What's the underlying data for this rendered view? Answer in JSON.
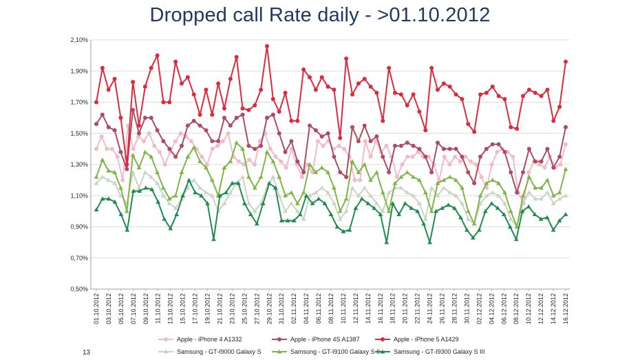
{
  "title": "Dropped call Rate daily - >01.10.2012",
  "page_number": "13",
  "chart_data": {
    "type": "line",
    "title": "Dropped call Rate daily - >01.10.2012",
    "xlabel": "",
    "ylabel": "",
    "ylim": [
      0.5,
      2.1
    ],
    "y_ticks": [
      "0,50%",
      "0,70%",
      "0,90%",
      "1,10%",
      "1,30%",
      "1,50%",
      "1,70%",
      "1,90%",
      "2,10%"
    ],
    "x_tick_labels": [
      "01.10.2012",
      "03.10.2012",
      "05.10.2012",
      "07.10.2012",
      "09.10.2012",
      "11.10.2012",
      "13.10.2012",
      "15.10.2012",
      "17.10.2012",
      "19.10.2012",
      "21.10.2012",
      "23.10.2012",
      "25.10.2012",
      "27.10.2012",
      "29.10.2012",
      "31.10.2012",
      "02.11.2012",
      "04.11.2012",
      "06.11.2012",
      "08.11.2012",
      "10.11.2012",
      "12.11.2012",
      "14.11.2012",
      "16.11.2012",
      "18.11.2012",
      "20.11.2012",
      "22.11.2012",
      "24.11.2012",
      "26.11.2012",
      "28.11.2012",
      "30.11.2012",
      "02.12.2012",
      "04.12.2012",
      "06.12.2012",
      "08.12.2012",
      "10.12.2012",
      "12.12.2012",
      "14.12.2012",
      "16.12.2012"
    ],
    "grid": true,
    "legend_position": "bottom",
    "series": [
      {
        "name": "Apple - iPhone 4 A1332",
        "color": "#f0bcc8",
        "marker": "circle",
        "values": [
          1.4,
          1.48,
          1.4,
          1.4,
          1.35,
          1.2,
          1.55,
          1.4,
          1.48,
          1.45,
          1.5,
          1.42,
          1.38,
          1.3,
          1.38,
          1.45,
          1.5,
          1.48,
          1.45,
          1.4,
          1.35,
          1.3,
          1.4,
          1.42,
          1.45,
          1.5,
          1.35,
          1.32,
          1.3,
          1.33,
          1.3,
          1.45,
          1.5,
          1.4,
          1.35,
          1.32,
          1.28,
          1.4,
          1.3,
          1.22,
          1.3,
          1.25,
          1.45,
          1.42,
          1.45,
          1.4,
          1.42,
          1.4,
          1.35,
          1.2,
          1.2,
          1.45,
          1.35,
          1.45,
          1.38,
          1.42,
          1.35,
          1.22,
          1.3,
          1.35,
          1.35,
          1.38,
          1.35,
          1.35,
          1.3,
          1.2,
          1.35,
          1.3,
          1.35,
          1.32,
          1.35,
          1.32,
          1.3,
          1.22,
          1.15,
          1.3,
          1.38,
          1.4,
          1.38,
          1.35,
          1.12,
          1.05,
          1.25,
          1.32,
          1.3,
          1.28,
          1.35,
          1.28,
          1.3,
          1.43
        ]
      },
      {
        "name": "Apple - iPhone 4S A1387",
        "color": "#b04a62",
        "marker": "circle",
        "values": [
          1.56,
          1.62,
          1.54,
          1.52,
          1.38,
          1.27,
          1.65,
          1.5,
          1.6,
          1.6,
          1.52,
          1.45,
          1.4,
          1.35,
          1.42,
          1.55,
          1.58,
          1.55,
          1.52,
          1.45,
          1.45,
          1.6,
          1.55,
          1.6,
          1.62,
          1.42,
          1.4,
          1.42,
          1.6,
          1.62,
          1.5,
          1.38,
          1.45,
          1.32,
          1.25,
          1.55,
          1.52,
          1.48,
          1.5,
          1.35,
          1.25,
          1.22,
          1.54,
          1.45,
          1.55,
          1.45,
          1.48,
          1.35,
          1.25,
          1.42,
          1.42,
          1.44,
          1.42,
          1.4,
          1.35,
          1.25,
          1.44,
          1.4,
          1.4,
          1.4,
          1.35,
          1.25,
          1.18,
          1.35,
          1.4,
          1.43,
          1.43,
          1.38,
          1.25,
          1.12,
          1.25,
          1.4,
          1.32,
          1.32,
          1.4,
          1.28,
          1.35,
          1.54
        ]
      },
      {
        "name": "Apple - iPhone 5 A1429",
        "color": "#e0283c",
        "marker": "circle",
        "values": [
          1.7,
          1.92,
          1.78,
          1.85,
          1.6,
          1.3,
          1.83,
          1.55,
          1.8,
          1.92,
          2.0,
          1.7,
          1.7,
          1.96,
          1.82,
          1.86,
          1.75,
          1.62,
          1.78,
          1.62,
          1.82,
          1.66,
          1.85,
          1.99,
          1.66,
          1.65,
          1.68,
          1.78,
          2.06,
          1.72,
          1.64,
          1.76,
          1.58,
          1.58,
          1.91,
          1.86,
          1.78,
          1.86,
          1.8,
          1.78,
          1.47,
          1.98,
          1.75,
          1.82,
          1.85,
          1.8,
          1.76,
          1.58,
          1.92,
          1.76,
          1.75,
          1.68,
          1.75,
          1.64,
          1.52,
          1.92,
          1.78,
          1.82,
          1.8,
          1.75,
          1.72,
          1.56,
          1.51,
          1.75,
          1.76,
          1.8,
          1.74,
          1.72,
          1.54,
          1.53,
          1.74,
          1.78,
          1.76,
          1.74,
          1.78,
          1.58,
          1.67,
          1.96
        ]
      },
      {
        "name": "Samsung - GT-I9000 Galaxy S",
        "color": "#c8d4c4",
        "marker": "triangle",
        "values": [
          1.18,
          1.22,
          1.2,
          1.18,
          1.1,
          1.05,
          1.25,
          1.15,
          1.25,
          1.22,
          1.18,
          1.1,
          1.05,
          1.02,
          1.08,
          1.15,
          1.2,
          1.15,
          1.12,
          1.1,
          1.0,
          1.05,
          1.12,
          1.18,
          1.22,
          1.05,
          1.0,
          1.05,
          1.15,
          1.22,
          1.1,
          1.0,
          1.05,
          1.0,
          0.95,
          1.1,
          1.12,
          1.15,
          1.12,
          1.05,
          0.95,
          1.0,
          1.15,
          1.1,
          1.15,
          1.1,
          1.05,
          1.0,
          1.12,
          1.15,
          1.15,
          1.12,
          1.1,
          1.05,
          0.95,
          1.15,
          1.1,
          1.15,
          1.12,
          1.1,
          1.05,
          0.95,
          0.92,
          1.05,
          1.1,
          1.12,
          1.1,
          1.05,
          0.95,
          0.9,
          1.05,
          1.12,
          1.08,
          1.08,
          1.12,
          1.05,
          1.08,
          1.1
        ]
      },
      {
        "name": "Samsung - GT-I9100 Galaxy S II",
        "color": "#7fb548",
        "marker": "triangle",
        "values": [
          1.22,
          1.33,
          1.26,
          1.25,
          1.15,
          1.0,
          1.36,
          1.28,
          1.38,
          1.35,
          1.25,
          1.15,
          1.08,
          1.1,
          1.25,
          1.35,
          1.41,
          1.32,
          1.28,
          1.2,
          1.1,
          1.28,
          1.32,
          1.44,
          1.4,
          1.22,
          1.15,
          1.22,
          1.38,
          1.32,
          1.22,
          1.1,
          1.12,
          1.05,
          1.12,
          1.3,
          1.25,
          1.28,
          1.25,
          1.15,
          1.0,
          1.08,
          1.32,
          1.25,
          1.3,
          1.2,
          1.25,
          1.12,
          1.0,
          1.18,
          1.22,
          1.25,
          1.22,
          1.2,
          1.12,
          1.0,
          1.18,
          1.2,
          1.22,
          1.2,
          1.15,
          1.0,
          0.92,
          1.1,
          1.18,
          1.2,
          1.18,
          1.12,
          1.0,
          0.9,
          1.1,
          1.22,
          1.15,
          1.15,
          1.2,
          1.1,
          1.12,
          1.27
        ]
      },
      {
        "name": "Samsung - GT-I9300 Galaxy S III",
        "color": "#1e8c4e",
        "marker": "triangle",
        "values": [
          1.01,
          1.08,
          1.08,
          1.06,
          0.98,
          0.88,
          1.13,
          1.13,
          1.15,
          1.14,
          1.06,
          0.95,
          0.89,
          0.98,
          1.1,
          1.2,
          1.12,
          1.1,
          1.05,
          0.82,
          1.1,
          1.12,
          1.18,
          1.18,
          1.05,
          0.98,
          0.92,
          1.05,
          1.18,
          1.15,
          0.94,
          0.94,
          0.94,
          0.98,
          1.1,
          1.05,
          1.08,
          1.05,
          0.98,
          0.9,
          0.87,
          0.88,
          1.02,
          1.08,
          1.05,
          1.02,
          0.98,
          0.8,
          1.05,
          0.98,
          1.05,
          1.02,
          1.0,
          0.92,
          0.8,
          1.0,
          1.02,
          1.04,
          1.02,
          0.96,
          0.88,
          0.83,
          0.88,
          1.0,
          1.05,
          1.02,
          0.98,
          0.9,
          0.82,
          1.0,
          1.03,
          0.98,
          0.95,
          0.96,
          0.88,
          0.94,
          0.98
        ]
      }
    ]
  }
}
